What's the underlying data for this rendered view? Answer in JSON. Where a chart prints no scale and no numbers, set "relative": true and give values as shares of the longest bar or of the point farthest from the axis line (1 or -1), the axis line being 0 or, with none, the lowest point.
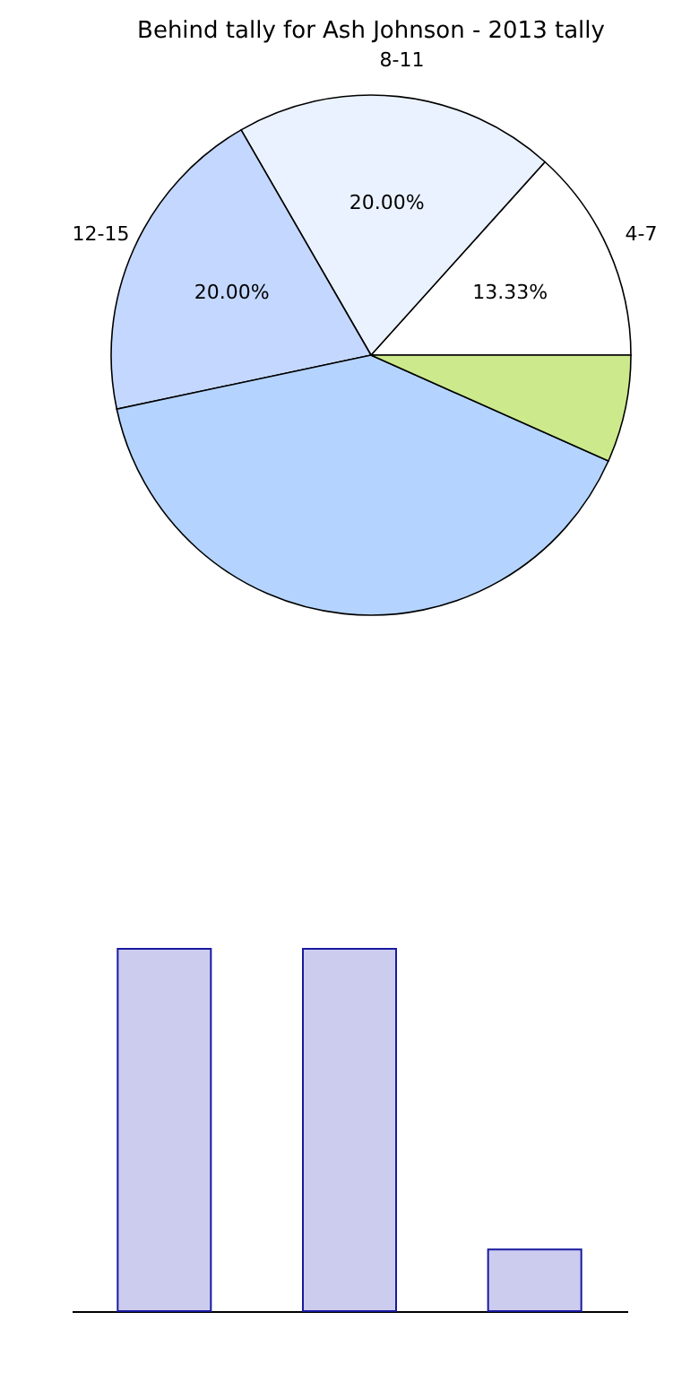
{
  "chart_data": [
    {
      "type": "pie",
      "title": "Behind tally for Ash Johnson - 2013 tally",
      "categories": [
        "4-7",
        "8-11",
        "12-15",
        null,
        null
      ],
      "values": [
        13.33,
        20,
        20,
        40,
        6.67
      ],
      "colors": [
        "#ffffff",
        "#eaf2ff",
        "#c4d8ff",
        "#b4d4ff",
        "#ccea8c"
      ],
      "value_labels": [
        "13.33%",
        "20.00%",
        "20.00%",
        null,
        null
      ],
      "legend": false
    },
    {
      "type": "bar",
      "categories": [
        null,
        null,
        null
      ],
      "values": [
        1,
        1,
        0.17
      ],
      "color": "#ccccee",
      "relative": true
    }
  ]
}
